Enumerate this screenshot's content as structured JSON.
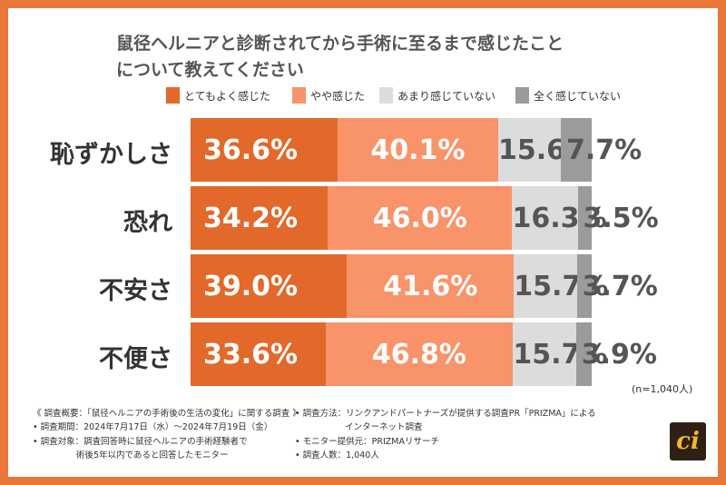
{
  "title_lines": [
    "鼠径ヘルニアと診断されてから手術に至るまで感じたこと",
    "について教えてください"
  ],
  "legend": [
    {
      "label": "とてもよく感じた",
      "color": "#e2692a"
    },
    {
      "label": "やや感じた",
      "color": "#f9936a"
    },
    {
      "label": "あまり感じていない",
      "color": "#dcdcdc"
    },
    {
      "label": "全く感じていない",
      "color": "#9b9b9b"
    }
  ],
  "chart_data": {
    "type": "bar",
    "orientation": "horizontal",
    "stacked": true,
    "title": "鼠径ヘルニアと診断されてから手術に至るまで感じたことについて教えてください",
    "categories": [
      "恥ずかしさ",
      "恐れ",
      "不安さ",
      "不便さ"
    ],
    "series": [
      {
        "name": "とてもよく感じた",
        "values": [
          36.6,
          34.2,
          39.0,
          33.6
        ],
        "labels": [
          "36.6%",
          "34.2%",
          "39.0%",
          "33.6%"
        ]
      },
      {
        "name": "やや感じた",
        "values": [
          40.1,
          46.0,
          41.6,
          46.8
        ],
        "labels": [
          "40.1%",
          "46.0%",
          "41.6%",
          "46.8%"
        ]
      },
      {
        "name": "あまり感じていない",
        "values": [
          15.6,
          16.3,
          15.7,
          15.7
        ],
        "labels": [
          "15.6%",
          "16.3%",
          "15.7%",
          "15.7%"
        ]
      },
      {
        "name": "全く感じていない",
        "values": [
          7.7,
          3.5,
          3.7,
          3.9
        ],
        "labels": [
          "7.7%",
          "3.5%",
          "3.7%",
          "3.9%"
        ]
      }
    ],
    "xlim": [
      0,
      100
    ],
    "unit": "%"
  },
  "sample_note": "(n=1,040人)",
  "footnotes": {
    "left": [
      "《 調査概要：「鼠径ヘルニアの手術後の生活の変化」に関する調査 》",
      "• 調査期間：2024年7月17日（水）～2024年7月19日（金）",
      "• 調査対象：調査回答時に鼠径ヘルニアの手術経験者で",
      "術後5年以内であると回答したモニター"
    ],
    "right": [
      "• 調査方法：リンクアンドパートナーズが提供する調査PR「PRIZMA」による",
      "インターネット調査",
      "• モニター提供元：PRIZMAリサーチ",
      "• 調査人数：1,040人"
    ]
  },
  "logo_text": "ci"
}
